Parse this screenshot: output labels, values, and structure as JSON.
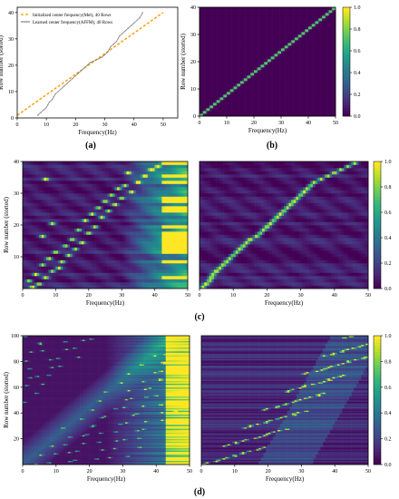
{
  "figure": {
    "caption_a": "(a)",
    "caption_b": "(b)",
    "caption_c": "(c)",
    "caption_d": "(d)"
  },
  "chart_data": [
    {
      "id": "a",
      "type": "line",
      "xlabel": "Frequency(Hz)",
      "ylabel": "Row number (sorted)",
      "xlim": [
        0,
        55
      ],
      "ylim": [
        0,
        42
      ],
      "xticks": [
        0,
        10,
        20,
        30,
        40,
        50
      ],
      "yticks": [
        0,
        10,
        20,
        30,
        40
      ],
      "grid": false,
      "legend": "top-left",
      "series": [
        {
          "name": "Initialized center frequency(Mel), 40 Rows",
          "color": "#ff9900",
          "style": "dashed",
          "x": [
            0,
            50
          ],
          "y": [
            1,
            40
          ]
        },
        {
          "name": "Learned center frequency(AFFM), 40 Rows",
          "color": "#808080",
          "style": "solid",
          "x": [
            7,
            8,
            9,
            10,
            10.5,
            11,
            12,
            12.5,
            13,
            14,
            15,
            16,
            17,
            18,
            19,
            20,
            21,
            22,
            23,
            24,
            25,
            26,
            27,
            28,
            29,
            30,
            31,
            31.5,
            32,
            33,
            34,
            34.5,
            35,
            36,
            37,
            38,
            39,
            40,
            41,
            42,
            43
          ],
          "y": [
            1,
            2,
            3,
            4,
            5,
            6,
            7,
            8,
            9,
            10,
            11,
            12,
            13,
            14,
            15,
            16,
            17,
            18,
            19,
            20,
            21,
            21.5,
            22,
            22.5,
            23,
            24,
            25,
            26,
            27,
            28,
            29,
            30,
            31,
            32,
            33,
            34,
            35,
            36,
            37,
            38,
            40
          ]
        }
      ]
    },
    {
      "id": "b",
      "type": "heatmap",
      "xlabel": "Frequency(Hz)",
      "ylabel": "Row number (storted)",
      "xlim": [
        0,
        50
      ],
      "ylim": [
        0,
        40
      ],
      "xticks": [
        0,
        10,
        20,
        30,
        40,
        50
      ],
      "yticks": [
        0,
        10,
        20,
        30,
        40
      ],
      "colorbar": {
        "ticks": [
          0.0,
          0.2,
          0.4,
          0.6,
          0.8,
          1.0
        ],
        "labels": [
          "0.0",
          "0.2",
          "0.4",
          "0.6",
          "0.8",
          "1.0"
        ],
        "colormap": "viridis"
      },
      "rows": 40,
      "pattern": "diagonal peak per row at x = (row+0.5)*1.25 Hz"
    },
    {
      "id": "c-left",
      "type": "heatmap",
      "ylabel": "Row number (storted)",
      "xlabel": "Frequency(Hz)",
      "xlim": [
        0,
        50
      ],
      "ylim": [
        0,
        40
      ],
      "xticks": [
        0,
        10,
        20,
        30,
        40,
        50
      ],
      "yticks": [
        10,
        20,
        30,
        40
      ],
      "rows": 40,
      "peaks_hz": [
        3,
        5,
        2,
        7,
        4,
        9,
        11,
        6,
        12,
        8,
        14,
        10,
        16,
        13,
        18,
        15,
        6,
        20,
        17,
        22,
        9,
        19,
        24,
        21,
        26,
        23,
        28,
        25,
        30,
        27,
        33,
        29,
        31,
        35,
        7,
        37,
        32,
        39,
        41,
        43
      ]
    },
    {
      "id": "c-right",
      "type": "heatmap",
      "xlabel": "Frequency(Hz)",
      "xlim": [
        0,
        50
      ],
      "ylim": [
        0,
        40
      ],
      "xticks": [
        0,
        10,
        20,
        30,
        40,
        50
      ],
      "colorbar": {
        "ticks": [
          0.0,
          0.2,
          0.4,
          0.6,
          0.8,
          1.0
        ],
        "labels": [
          "0.0",
          "0.2",
          "0.4",
          "0.6",
          "0.8",
          "1.0"
        ],
        "colormap": "viridis"
      },
      "rows": 40,
      "peaks_hz": [
        1,
        2,
        3,
        3.5,
        4,
        5,
        6,
        7,
        8,
        9,
        10,
        11,
        12,
        13,
        14,
        15,
        17,
        18,
        19,
        20,
        21,
        22,
        23,
        24,
        25,
        26,
        27,
        28,
        29,
        30,
        31,
        32,
        33,
        34,
        36,
        38,
        40,
        42,
        44,
        46
      ]
    },
    {
      "id": "d-left",
      "type": "heatmap",
      "xlabel": "Frequency(Hz)",
      "ylabel": "Row number (storted)",
      "xlim": [
        0,
        50
      ],
      "ylim": [
        0,
        100
      ],
      "xticks": [
        0,
        10,
        20,
        30,
        40,
        50
      ],
      "yticks": [
        20,
        40,
        60,
        80,
        100
      ],
      "rows": 100
    },
    {
      "id": "d-right",
      "type": "heatmap",
      "xlabel": "Frequency(Hz)",
      "xlim": [
        0,
        50
      ],
      "ylim": [
        0,
        100
      ],
      "xticks": [
        0,
        10,
        20,
        30,
        40,
        50
      ],
      "colorbar": {
        "ticks": [
          0.0,
          0.2,
          0.4,
          0.6,
          0.8,
          1.0
        ],
        "labels": [
          "0.0",
          "0.2",
          "0.4",
          "0.6",
          "0.8",
          "1.0"
        ],
        "colormap": "viridis"
      },
      "rows": 100
    }
  ]
}
